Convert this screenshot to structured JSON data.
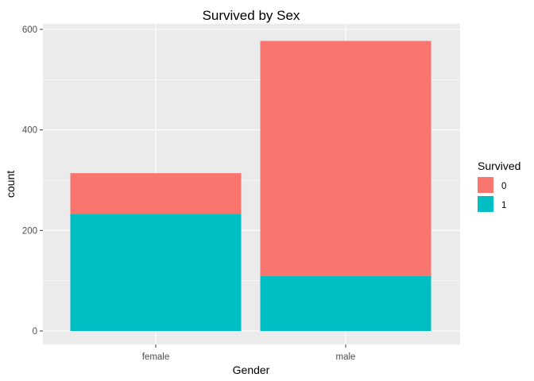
{
  "chart_data": {
    "type": "bar",
    "stacked": true,
    "title": "Survived by Sex",
    "xlabel": "Gender",
    "ylabel": "count",
    "categories": [
      "female",
      "male"
    ],
    "ylim": [
      0,
      600
    ],
    "yticks": [
      0,
      200,
      400,
      600
    ],
    "grid": true,
    "legend": {
      "title": "Survived",
      "position": "right"
    },
    "series": [
      {
        "name": "0",
        "color": "#F8766D",
        "values": [
          81,
          468
        ]
      },
      {
        "name": "1",
        "color": "#00BFC4",
        "values": [
          233,
          109
        ]
      }
    ]
  }
}
